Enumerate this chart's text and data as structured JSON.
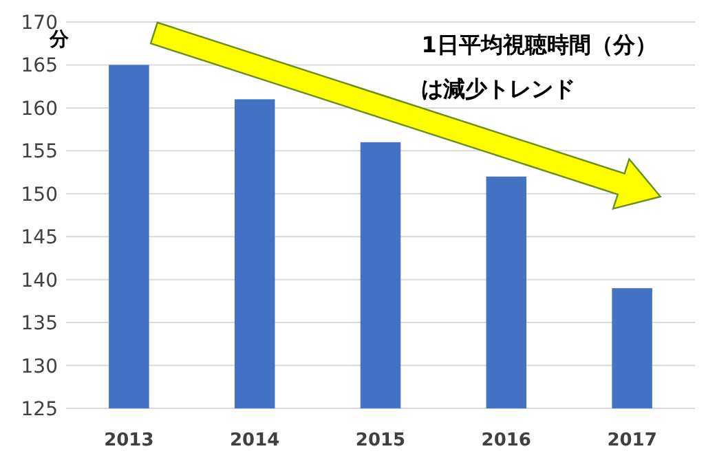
{
  "chart_data": {
    "type": "bar",
    "ylabel": "分",
    "categories": [
      "2013",
      "2014",
      "2015",
      "2016",
      "2017"
    ],
    "values": [
      165,
      161,
      156,
      152,
      139
    ],
    "color": "#4472c4",
    "ylim": [
      125,
      170
    ],
    "yticks": [
      125,
      130,
      135,
      140,
      145,
      150,
      155,
      160,
      165,
      170
    ],
    "grid": "y",
    "annotations": [
      "1日平均視聴時間（分）",
      "は減少トレンド"
    ]
  }
}
